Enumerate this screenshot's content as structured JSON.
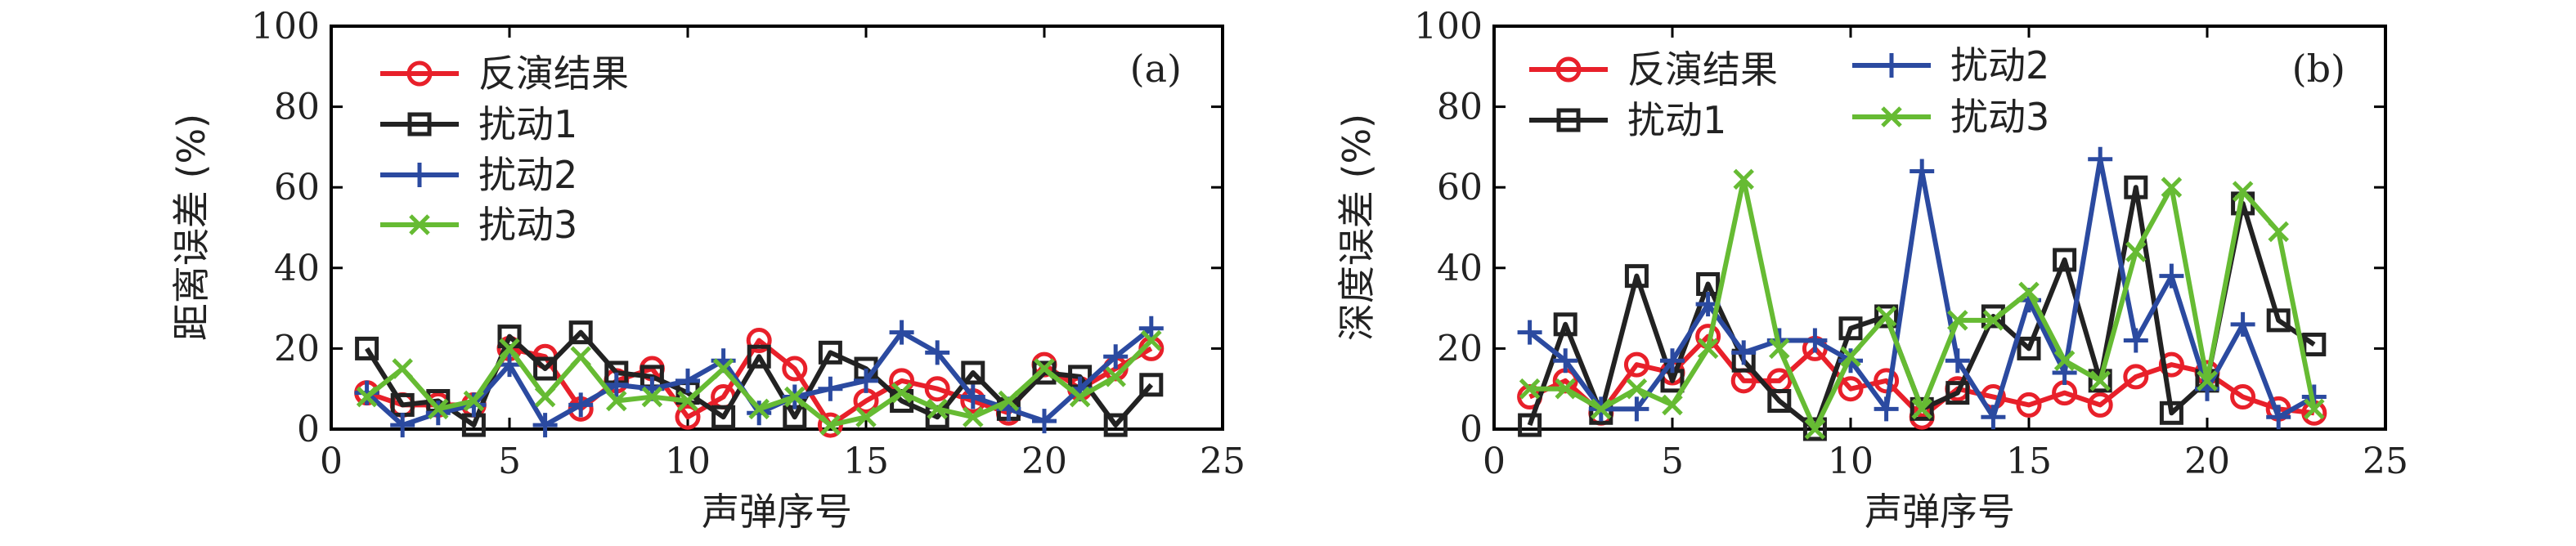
{
  "chart_data": [
    {
      "type": "line",
      "panel_label": "(a)",
      "xlabel": "声弹序号",
      "ylabel": "距离误差 (%)",
      "xlim": [
        0,
        25
      ],
      "ylim": [
        0,
        100
      ],
      "xticks": [
        0,
        5,
        10,
        15,
        20,
        25
      ],
      "yticks": [
        0,
        20,
        40,
        60,
        80,
        100
      ],
      "legend_position": "top-left",
      "legend_columns": 1,
      "x": [
        1,
        2,
        3,
        4,
        5,
        6,
        7,
        8,
        9,
        10,
        11,
        12,
        13,
        14,
        15,
        16,
        17,
        18,
        19,
        20,
        21,
        22,
        23
      ],
      "series": [
        {
          "name": "反演结果",
          "color": "#e8202a",
          "marker": "circle",
          "values": [
            9,
            6,
            6,
            6,
            20,
            18,
            5,
            12,
            15,
            3,
            8,
            22,
            15,
            1,
            7,
            12,
            10,
            7,
            4,
            16,
            10,
            15,
            20
          ]
        },
        {
          "name": "扰动1",
          "color": "#222222",
          "marker": "square",
          "values": [
            20,
            6,
            7,
            1,
            23,
            15,
            24,
            14,
            13,
            9,
            3,
            18,
            3,
            19,
            15,
            7,
            3,
            14,
            5,
            14,
            13,
            1,
            11
          ]
        },
        {
          "name": "扰动2",
          "color": "#2b4aa0",
          "marker": "plus",
          "values": [
            9,
            1,
            4,
            6,
            16,
            1,
            6,
            11,
            10,
            12,
            17,
            4,
            8,
            10,
            12,
            24,
            19,
            8,
            5,
            2,
            10,
            18,
            25
          ]
        },
        {
          "name": "扰动3",
          "color": "#66bb33",
          "marker": "x",
          "values": [
            8,
            15,
            5,
            7,
            20,
            8,
            18,
            7,
            8,
            7,
            15,
            5,
            8,
            1,
            3,
            9,
            5,
            3,
            7,
            15,
            8,
            13,
            22
          ]
        }
      ]
    },
    {
      "type": "line",
      "panel_label": "(b)",
      "xlabel": "声弹序号",
      "ylabel": "深度误差 (%)",
      "xlim": [
        0,
        25
      ],
      "ylim": [
        0,
        100
      ],
      "xticks": [
        0,
        5,
        10,
        15,
        20,
        25
      ],
      "yticks": [
        0,
        20,
        40,
        60,
        80,
        100
      ],
      "legend_position": "top-left",
      "legend_columns": 2,
      "x": [
        1,
        2,
        3,
        4,
        5,
        6,
        7,
        8,
        9,
        10,
        11,
        12,
        13,
        14,
        15,
        16,
        17,
        18,
        19,
        20,
        21,
        22,
        23
      ],
      "series": [
        {
          "name": "反演结果",
          "color": "#e8202a",
          "marker": "circle",
          "values": [
            8,
            12,
            4,
            16,
            14,
            23,
            12,
            12,
            20,
            10,
            12,
            3,
            10,
            8,
            6,
            9,
            6,
            13,
            16,
            14,
            8,
            5,
            4
          ]
        },
        {
          "name": "扰动1",
          "color": "#222222",
          "marker": "square",
          "values": [
            1,
            26,
            4,
            38,
            12,
            36,
            17,
            7,
            0,
            25,
            28,
            5,
            9,
            28,
            20,
            42,
            12,
            60,
            4,
            12,
            56,
            27,
            21
          ]
        },
        {
          "name": "扰动2",
          "color": "#2b4aa0",
          "marker": "plus",
          "values": [
            24,
            17,
            5,
            5,
            17,
            31,
            19,
            22,
            22,
            17,
            5,
            64,
            17,
            3,
            32,
            14,
            67,
            22,
            38,
            10,
            26,
            3,
            8
          ]
        },
        {
          "name": "扰动3",
          "color": "#66bb33",
          "marker": "x",
          "values": [
            10,
            10,
            5,
            10,
            6,
            20,
            62,
            20,
            0,
            18,
            28,
            5,
            27,
            27,
            34,
            17,
            12,
            44,
            60,
            12,
            59,
            49,
            5
          ]
        }
      ]
    }
  ]
}
